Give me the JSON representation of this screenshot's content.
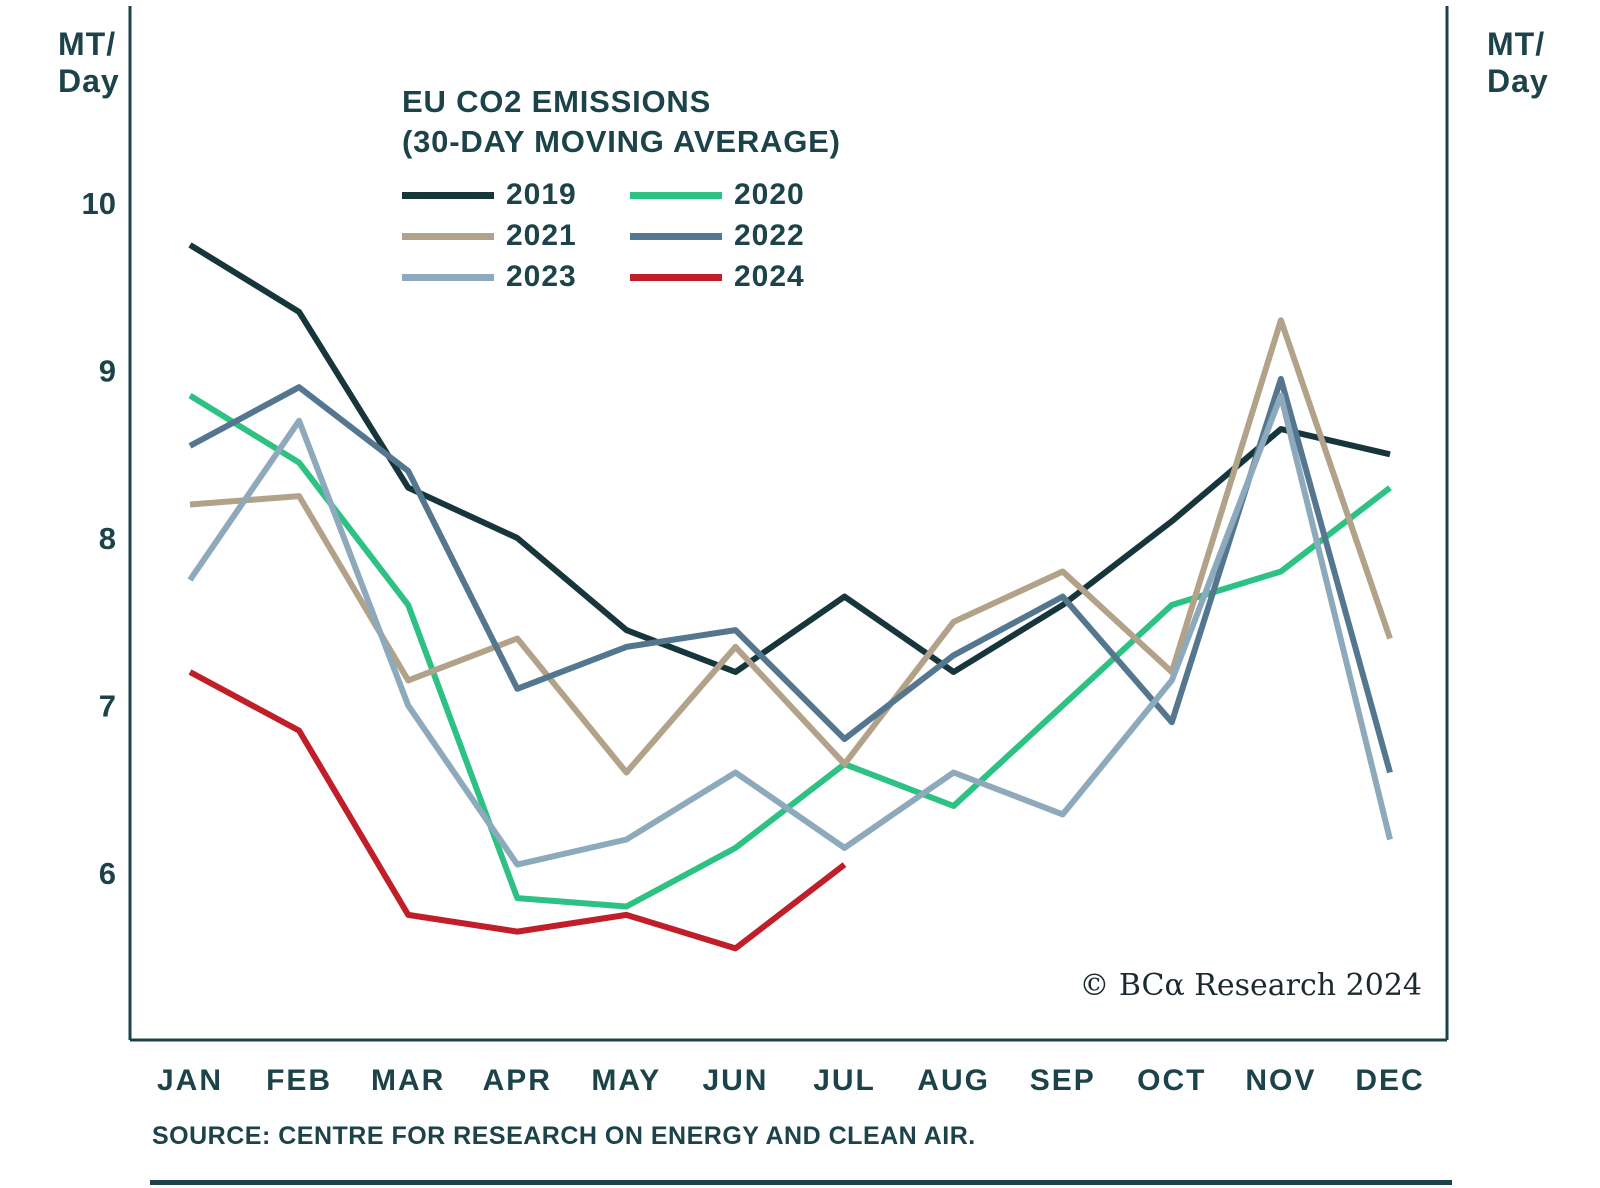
{
  "labels": {
    "unit_left": "MT/\nDay",
    "unit_right": "MT/\nDay"
  },
  "chart_data": {
    "type": "line",
    "title": "EU CO2 EMISSIONS",
    "subtitle": "(30-DAY MOVING AVERAGE)",
    "ylabel": "MT/Day",
    "categories": [
      "JAN",
      "FEB",
      "MAR",
      "APR",
      "MAY",
      "JUN",
      "JUL",
      "AUG",
      "SEP",
      "OCT",
      "NOV",
      "DEC"
    ],
    "y_ticks": [
      6,
      7,
      8,
      9,
      10
    ],
    "ylim": [
      5,
      10.5
    ],
    "grid": false,
    "legend_position": "top-center",
    "series": [
      {
        "name": "2019",
        "color": "#17363c",
        "values": [
          9.75,
          9.35,
          8.3,
          8.0,
          7.45,
          7.2,
          7.65,
          7.2,
          7.6,
          8.1,
          8.65,
          8.5
        ]
      },
      {
        "name": "2020",
        "color": "#2dc284",
        "values": [
          8.85,
          8.45,
          7.6,
          5.85,
          5.8,
          6.15,
          6.65,
          6.4,
          7.0,
          7.6,
          7.8,
          8.3
        ]
      },
      {
        "name": "2021",
        "color": "#b1a289",
        "values": [
          8.2,
          8.25,
          7.15,
          7.4,
          6.6,
          7.35,
          6.65,
          7.5,
          7.8,
          7.2,
          9.3,
          7.4
        ]
      },
      {
        "name": "2022",
        "color": "#54778f",
        "values": [
          8.55,
          8.9,
          8.4,
          7.1,
          7.35,
          7.45,
          6.8,
          7.3,
          7.65,
          6.9,
          8.95,
          6.6
        ]
      },
      {
        "name": "2023",
        "color": "#8da9bc",
        "values": [
          7.75,
          8.7,
          7.0,
          6.05,
          6.2,
          6.6,
          6.15,
          6.6,
          6.35,
          7.15,
          8.85,
          6.2
        ]
      },
      {
        "name": "2024",
        "color": "#c01f2a",
        "values": [
          7.2,
          6.85,
          5.75,
          5.65,
          5.75,
          5.55,
          6.05,
          null,
          null,
          null,
          null,
          null
        ]
      }
    ],
    "source": "SOURCE: CENTRE FOR RESEARCH ON ENERGY AND CLEAN AIR.",
    "copyright": "© BCα Research 2024"
  }
}
